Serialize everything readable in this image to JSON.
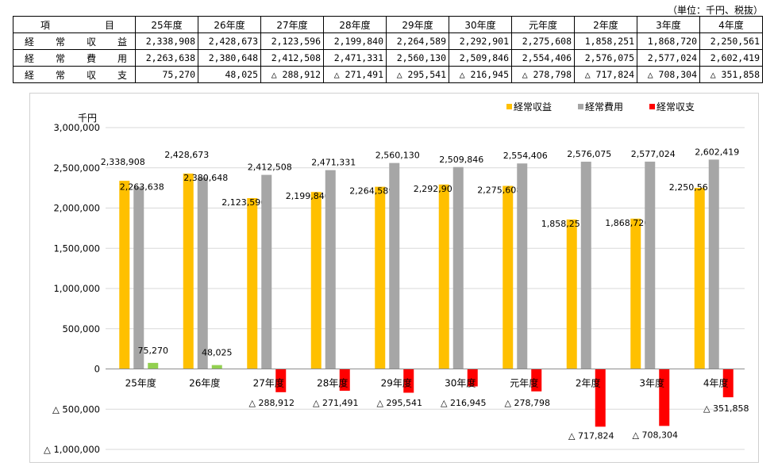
{
  "unit_note": "（単位：千円、税抜）",
  "table": {
    "corner": "項　　　目",
    "headers": [
      "25年度",
      "26年度",
      "27年度",
      "28年度",
      "29年度",
      "30年度",
      "元年度",
      "2年度",
      "3年度",
      "4年度"
    ],
    "rows": [
      {
        "label": "経　常　収　益",
        "values": [
          "2,338,908",
          "2,428,673",
          "2,123,596",
          "2,199,840",
          "2,264,589",
          "2,292,901",
          "2,275,608",
          "1,858,251",
          "1,868,720",
          "2,250,561"
        ]
      },
      {
        "label": "経　常　費　用",
        "values": [
          "2,263,638",
          "2,380,648",
          "2,412,508",
          "2,471,331",
          "2,560,130",
          "2,509,846",
          "2,554,406",
          "2,576,075",
          "2,577,024",
          "2,602,419"
        ]
      },
      {
        "label": "経　常　収　支",
        "values": [
          "75,270",
          "48,025",
          "△ 288,912",
          "△ 271,491",
          "△ 295,541",
          "△ 216,945",
          "△ 278,798",
          "△ 717,824",
          "△ 708,304",
          "△ 351,858"
        ]
      }
    ]
  },
  "chart_data": {
    "type": "bar",
    "ylabel": "千円",
    "ylim": [
      -1000000,
      3000000
    ],
    "yticks": [
      -1000000,
      -500000,
      0,
      500000,
      1000000,
      1500000,
      2000000,
      2500000,
      3000000
    ],
    "ytick_labels": [
      "△ 1,000,000",
      "△ 500,000",
      "0",
      "500,000",
      "1,000,000",
      "1,500,000",
      "2,000,000",
      "2,500,000",
      "3,000,000"
    ],
    "categories": [
      "25年度",
      "26年度",
      "27年度",
      "28年度",
      "29年度",
      "30年度",
      "元年度",
      "2年度",
      "3年度",
      "4年度"
    ],
    "grid": true,
    "legend_position": "top-right",
    "series": [
      {
        "name": "経常収益",
        "color": "#FFC000",
        "values": [
          2338908,
          2428673,
          2123596,
          2199840,
          2264589,
          2292901,
          2275608,
          1858251,
          1868720,
          2250561
        ],
        "labels": [
          "2,338,908",
          "2,428,673",
          "2,123,596",
          "2,199,840",
          "2,264,589",
          "2,292,901",
          "2,275,608",
          "1,858,251",
          "1,868,720",
          "2,250,561"
        ]
      },
      {
        "name": "経常費用",
        "color": "#A6A6A6",
        "values": [
          2263638,
          2380648,
          2412508,
          2471331,
          2560130,
          2509846,
          2554406,
          2576075,
          2577024,
          2602419
        ],
        "labels": [
          "2,263,638",
          "2,380,648",
          "2,412,508",
          "2,471,331",
          "2,560,130",
          "2,509,846",
          "2,554,406",
          "2,576,075",
          "2,577,024",
          "2,602,419"
        ]
      },
      {
        "name": "経常収支",
        "color": "#FF0000",
        "positive_color": "#92D050",
        "values": [
          75270,
          48025,
          -288912,
          -271491,
          -295541,
          -216945,
          -278798,
          -717824,
          -708304,
          -351858
        ],
        "labels": [
          "75,270",
          "48,025",
          "△ 288,912",
          "△ 271,491",
          "△ 295,541",
          "△ 216,945",
          "△ 278,798",
          "△ 717,824",
          "△ 708,304",
          "△ 351,858"
        ]
      }
    ]
  }
}
